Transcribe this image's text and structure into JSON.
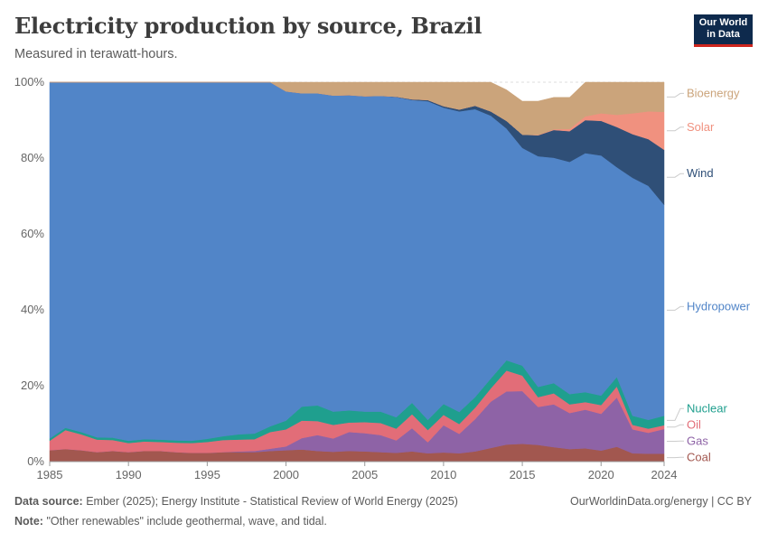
{
  "header": {
    "title": "Electricity production by source, Brazil",
    "subtitle": "Measured in terawatt-hours."
  },
  "logo": {
    "line1": "Our World",
    "line2": "in Data"
  },
  "footer": {
    "source_label": "Data source:",
    "source_text": "Ember (2025); Energy Institute - Statistical Review of World Energy (2025)",
    "note_label": "Note:",
    "note_text": "\"Other renewables\" include geothermal, wave, and tidal.",
    "right_text": "OurWorldinData.org/energy | CC BY"
  },
  "chart_data": {
    "type": "area",
    "stacked": "percent",
    "y_ticks": [
      "0%",
      "20%",
      "40%",
      "60%",
      "80%",
      "100%"
    ],
    "x_ticks": [
      "1985",
      "1990",
      "1995",
      "2000",
      "2005",
      "2010",
      "2015",
      "2020",
      "2024"
    ],
    "x_tick_values": [
      1985,
      1990,
      1995,
      2000,
      2005,
      2010,
      2015,
      2020,
      2024
    ],
    "ylim": [
      0,
      100
    ],
    "grid": true,
    "x": [
      1985,
      1986,
      1987,
      1988,
      1989,
      1990,
      1991,
      1992,
      1993,
      1994,
      1995,
      1996,
      1997,
      1998,
      1999,
      2000,
      2001,
      2002,
      2003,
      2004,
      2005,
      2006,
      2007,
      2008,
      2009,
      2010,
      2011,
      2012,
      2013,
      2014,
      2015,
      2016,
      2017,
      2018,
      2019,
      2020,
      2021,
      2022,
      2023,
      2024
    ],
    "series": [
      {
        "name": "Coal",
        "color": "#a2574f",
        "values": [
          3,
          3.3,
          3,
          2.5,
          2.8,
          2.5,
          2.8,
          2.8,
          2.5,
          2.3,
          2.3,
          2.5,
          2.5,
          2.5,
          2.8,
          3,
          3.2,
          2.8,
          2.6,
          2.8,
          2.7,
          2.5,
          2.3,
          2.7,
          2.2,
          2.4,
          2.2,
          2.7,
          3.6,
          4.5,
          4.7,
          4.4,
          3.8,
          3.3,
          3.5,
          2.9,
          3.9,
          2.2,
          2.1,
          2.1
        ]
      },
      {
        "name": "Gas",
        "color": "#8e63a6",
        "values": [
          0,
          0,
          0,
          0,
          0,
          0,
          0,
          0,
          0,
          0,
          0,
          0,
          0.2,
          0.3,
          0.6,
          1,
          3,
          4.2,
          3.5,
          5,
          4.8,
          4.5,
          3.3,
          6.1,
          2.9,
          7.2,
          5.1,
          8.5,
          12.2,
          14,
          13.9,
          10,
          11.3,
          9.5,
          10.2,
          9.7,
          13,
          6.3,
          5.5,
          6.5
        ]
      },
      {
        "name": "Oil",
        "color": "#e26d78",
        "values": [
          2.5,
          5,
          4.2,
          3.3,
          2.9,
          2.4,
          2.5,
          2.4,
          2.5,
          2.6,
          2.9,
          3.2,
          3.1,
          3.1,
          4.4,
          4.5,
          4.6,
          3.7,
          3.6,
          2.5,
          2.9,
          3.2,
          3.1,
          3.7,
          3.2,
          2.7,
          2.6,
          3,
          3.5,
          5.5,
          4.1,
          2.6,
          2.9,
          2.3,
          2,
          2.3,
          2.9,
          1.2,
          1.1,
          1
        ]
      },
      {
        "name": "Nuclear",
        "color": "#1f9f8e",
        "values": [
          0.6,
          0.6,
          0.6,
          0.6,
          0.6,
          0.6,
          0.6,
          0.6,
          0.6,
          0.6,
          0.8,
          1,
          1.4,
          1.5,
          1.5,
          2.3,
          3.7,
          4.1,
          3.5,
          3.2,
          2.8,
          3,
          3,
          3,
          2.7,
          2.9,
          3.2,
          2.8,
          2.6,
          2.7,
          2.6,
          2.7,
          2.7,
          2.7,
          2.6,
          2.5,
          2.5,
          2.4,
          2.3,
          2.5
        ]
      },
      {
        "name": "Hydropower",
        "color": "#5185c8",
        "values": [
          93.9,
          91.1,
          92.2,
          93.6,
          93.7,
          94.5,
          94.1,
          94.2,
          94.4,
          94.5,
          94,
          93.3,
          92.8,
          92.6,
          90.7,
          86.8,
          82.6,
          82.3,
          83.3,
          83.1,
          83.1,
          83.2,
          84.4,
          79.8,
          84,
          78.1,
          79.2,
          75.9,
          69.3,
          61.1,
          57.4,
          60.8,
          59.4,
          61.2,
          63,
          63.3,
          55.3,
          62.7,
          61.7,
          55.6
        ]
      },
      {
        "name": "Wind",
        "color": "#2f4f77",
        "values": [
          0,
          0,
          0,
          0,
          0,
          0,
          0,
          0,
          0,
          0,
          0,
          0,
          0,
          0,
          0,
          0,
          0,
          0,
          0,
          0,
          0,
          0,
          0.1,
          0.2,
          0.3,
          0.4,
          0.5,
          0.9,
          1.1,
          2,
          3.5,
          5.5,
          7.3,
          8.1,
          8.7,
          9.1,
          10.6,
          11.5,
          12.3,
          14.5
        ]
      },
      {
        "name": "Solar",
        "color": "#f0917f",
        "values": [
          0,
          0,
          0,
          0,
          0,
          0,
          0,
          0,
          0,
          0,
          0,
          0,
          0,
          0,
          0,
          0,
          0,
          0,
          0,
          0,
          0,
          0,
          0,
          0,
          0,
          0,
          0,
          0,
          0,
          0,
          0,
          0.1,
          0.2,
          0.6,
          1,
          2,
          3.2,
          5.5,
          7.3,
          10
        ]
      },
      {
        "name": "Bioenergy",
        "color": "#cba47b",
        "values": [
          0,
          0,
          0,
          0,
          0,
          0,
          0,
          0,
          0,
          0,
          0,
          0,
          0,
          0,
          0,
          2.4,
          2.9,
          2.9,
          3.5,
          3.4,
          3.7,
          3.6,
          3.8,
          4.5,
          4.7,
          6.3,
          7.2,
          6.2,
          7.7,
          8.2,
          8.8,
          8.9,
          8.4,
          8.3,
          9,
          8.2,
          8.6,
          8.2,
          7.7,
          7.8
        ]
      }
    ]
  }
}
